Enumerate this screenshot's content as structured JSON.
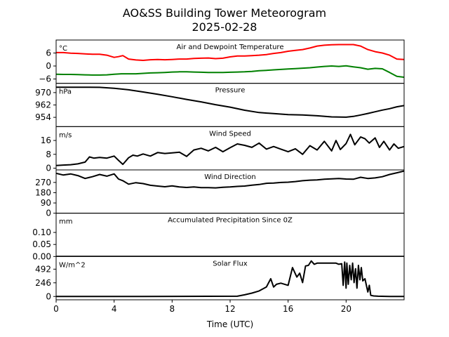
{
  "figure": {
    "title_line1": "AO&SS Building Tower Meteorogram",
    "title_line2": "2025-02-28"
  },
  "chart_data": {
    "type": "line",
    "xlabel": "Time (UTC)",
    "xlim": [
      0,
      24
    ],
    "x_ticks": [
      0,
      4,
      8,
      12,
      16,
      20
    ],
    "grid": false,
    "panels": [
      {
        "id": "temp",
        "title": "Air and Dewpoint Temperature",
        "unit": "°C",
        "ylim": [
          -8,
          12
        ],
        "y_ticks": [
          6,
          0,
          -6
        ],
        "series": [
          {
            "color": "#ff0000",
            "x": [
              0,
              0.5,
              1,
              1.5,
              2,
              2.5,
              3,
              3.5,
              4,
              4.3,
              4.6,
              5,
              5.5,
              6,
              6.5,
              7,
              7.5,
              8,
              8.5,
              9,
              9.5,
              10,
              10.5,
              11,
              11.5,
              12,
              12.5,
              13,
              13.5,
              14,
              14.5,
              15,
              15.5,
              16,
              16.5,
              17,
              17.5,
              18,
              18.5,
              19,
              19.5,
              20,
              20.5,
              21,
              21.5,
              22,
              22.5,
              23,
              23.5,
              24
            ],
            "values": [
              6.2,
              6.2,
              5.9,
              5.8,
              5.6,
              5.4,
              5.4,
              5.0,
              4.0,
              4.3,
              4.8,
              3.2,
              2.8,
              2.6,
              2.9,
              3.0,
              2.9,
              3.0,
              3.2,
              3.2,
              3.5,
              3.6,
              3.7,
              3.4,
              3.6,
              4.2,
              4.6,
              4.6,
              4.8,
              5.0,
              5.3,
              5.8,
              6.2,
              6.8,
              7.2,
              7.6,
              8.3,
              9.2,
              9.6,
              9.8,
              9.9,
              9.9,
              9.9,
              9.2,
              7.6,
              6.6,
              6.0,
              5.0,
              3.2,
              3.0
            ]
          },
          {
            "color": "#008000",
            "x": [
              0,
              0.5,
              1,
              1.5,
              2,
              2.5,
              3,
              3.5,
              4,
              4.5,
              5,
              5.5,
              6,
              6.5,
              7,
              7.5,
              8,
              8.5,
              9,
              9.5,
              10,
              10.5,
              11,
              11.5,
              12,
              12.5,
              13,
              13.5,
              14,
              14.5,
              15,
              15.5,
              16,
              16.5,
              17,
              17.5,
              18,
              18.5,
              19,
              19.5,
              20,
              20.5,
              21,
              21.5,
              22,
              22.5,
              23,
              23.5,
              24
            ],
            "values": [
              -3.8,
              -3.9,
              -3.9,
              -4.0,
              -4.1,
              -4.2,
              -4.2,
              -4.1,
              -3.8,
              -3.6,
              -3.6,
              -3.6,
              -3.4,
              -3.2,
              -3.1,
              -3.0,
              -2.8,
              -2.7,
              -2.7,
              -2.8,
              -2.9,
              -3.0,
              -3.0,
              -3.0,
              -2.9,
              -2.8,
              -2.7,
              -2.5,
              -2.2,
              -2.0,
              -1.8,
              -1.6,
              -1.4,
              -1.2,
              -1.0,
              -0.8,
              -0.5,
              -0.2,
              0.0,
              -0.2,
              0.1,
              -0.4,
              -0.8,
              -1.5,
              -1.1,
              -1.3,
              -3.0,
              -4.8,
              -5.2
            ]
          }
        ]
      },
      {
        "id": "pressure",
        "title": "Pressure",
        "unit": "hPa",
        "ylim": [
          948,
          976
        ],
        "y_ticks": [
          970,
          962,
          954
        ],
        "series": [
          {
            "color": "#000000",
            "x": [
              0,
              1,
              2,
              3,
              4,
              5,
              6,
              7,
              8,
              9,
              10,
              11,
              12,
              13,
              14,
              15,
              16,
              17,
              18,
              19,
              20,
              20.5,
              21,
              21.5,
              22,
              22.5,
              23,
              23.5,
              24
            ],
            "values": [
              973.5,
              973.5,
              973.5,
              973.4,
              972.8,
              971.8,
              970.4,
              968.9,
              967.3,
              965.6,
              964.0,
              962.2,
              960.6,
              958.6,
              957.1,
              956.4,
              955.8,
              955.5,
              955.0,
              954.3,
              954.1,
              954.6,
              955.5,
              956.5,
              957.6,
              958.7,
              959.6,
              960.8,
              961.6
            ]
          }
        ]
      },
      {
        "id": "wind_speed",
        "title": "Wind Speed",
        "unit": "m/s",
        "ylim": [
          -1,
          24
        ],
        "y_ticks": [
          16,
          8,
          0
        ],
        "series": [
          {
            "color": "#000000",
            "x": [
              0,
              0.5,
              1,
              1.5,
              2,
              2.3,
              2.6,
              3,
              3.5,
              4,
              4.3,
              4.6,
              5,
              5.3,
              5.6,
              6,
              6.5,
              7,
              7.5,
              8,
              8.5,
              9,
              9.5,
              10,
              10.5,
              11,
              11.5,
              12,
              12.5,
              13,
              13.5,
              14,
              14.5,
              15,
              15.5,
              16,
              16.5,
              17,
              17.5,
              18,
              18.5,
              19,
              19.3,
              19.6,
              20,
              20.3,
              20.6,
              21,
              21.3,
              21.6,
              22,
              22.3,
              22.6,
              23,
              23.3,
              23.6,
              24
            ],
            "values": [
              1.5,
              1.8,
              2.0,
              2.5,
              3.5,
              6.5,
              5.8,
              6.2,
              5.8,
              7.0,
              4.5,
              2.2,
              6.0,
              7.5,
              7.0,
              8.2,
              7.0,
              9.0,
              8.5,
              8.8,
              9.2,
              6.8,
              10.5,
              11.5,
              10.0,
              12.0,
              9.5,
              11.8,
              14.0,
              13.2,
              12.0,
              14.5,
              11.0,
              12.5,
              11.0,
              9.5,
              11.2,
              8.0,
              13.0,
              10.5,
              15.5,
              10.0,
              16.0,
              10.8,
              14.2,
              19.5,
              13.5,
              18.0,
              17.0,
              14.5,
              17.5,
              12.0,
              15.5,
              10.5,
              14.0,
              11.5,
              12.5
            ]
          }
        ]
      },
      {
        "id": "wind_direction",
        "title": "Wind Direction",
        "unit": "",
        "ylim": [
          0,
          380
        ],
        "y_ticks": [
          270,
          180,
          90,
          0
        ],
        "series": [
          {
            "color": "#000000",
            "x": [
              0,
              0.5,
              1,
              1.5,
              2,
              2.5,
              3,
              3.5,
              4,
              4.3,
              4.6,
              5,
              5.5,
              6,
              6.5,
              7,
              7.5,
              8,
              8.5,
              9,
              9.5,
              10,
              10.5,
              11,
              11.5,
              12,
              12.5,
              13,
              13.5,
              14,
              14.5,
              15,
              15.5,
              16,
              16.5,
              17,
              17.5,
              18,
              18.5,
              19,
              19.5,
              20,
              20.5,
              21,
              21.5,
              22,
              22.5,
              23,
              23.5,
              24
            ],
            "values": [
              350,
              335,
              345,
              330,
              305,
              320,
              340,
              325,
              345,
              300,
              285,
              255,
              268,
              260,
              245,
              238,
              232,
              240,
              230,
              226,
              230,
              225,
              224,
              222,
              228,
              230,
              235,
              238,
              246,
              252,
              262,
              265,
              270,
              272,
              278,
              285,
              290,
              292,
              298,
              302,
              305,
              300,
              298,
              315,
              305,
              310,
              320,
              340,
              355,
              370
            ]
          }
        ]
      },
      {
        "id": "precip",
        "title": "Accumulated Precipitation Since 0Z",
        "unit": "mm",
        "ylim": [
          0,
          0.18
        ],
        "y_ticks": [
          0.1,
          0.05,
          0.0
        ],
        "series": [
          {
            "color": "#000000",
            "x": [
              0,
              24
            ],
            "values": [
              0,
              0
            ]
          }
        ]
      },
      {
        "id": "solar",
        "title": "Solar Flux",
        "unit": "W/m^2",
        "ylim": [
          -60,
          720
        ],
        "y_ticks": [
          492,
          246,
          0
        ],
        "series": [
          {
            "color": "#000000",
            "x": [
              0,
              6,
              12.5,
              13,
              13.5,
              14,
              14.5,
              14.8,
              15,
              15.2,
              15.5,
              16,
              16.3,
              16.6,
              16.8,
              17,
              17.2,
              17.4,
              17.6,
              17.8,
              18,
              18.5,
              19,
              19.3,
              19.5,
              19.7,
              19.8,
              19.9,
              20,
              20.05,
              20.15,
              20.25,
              20.35,
              20.45,
              20.55,
              20.65,
              20.75,
              20.85,
              20.95,
              21.05,
              21.15,
              21.3,
              21.5,
              21.6,
              21.7,
              21.9,
              22.2,
              23,
              24
            ],
            "values": [
              0,
              0,
              5,
              30,
              60,
              100,
              170,
              320,
              170,
              220,
              240,
              200,
              520,
              350,
              420,
              250,
              550,
              560,
              640,
              580,
              600,
              600,
              600,
              600,
              580,
              590,
              200,
              620,
              150,
              600,
              220,
              560,
              300,
              600,
              250,
              500,
              150,
              560,
              300,
              520,
              280,
              320,
              80,
              200,
              20,
              10,
              5,
              0,
              0
            ]
          }
        ]
      }
    ]
  }
}
